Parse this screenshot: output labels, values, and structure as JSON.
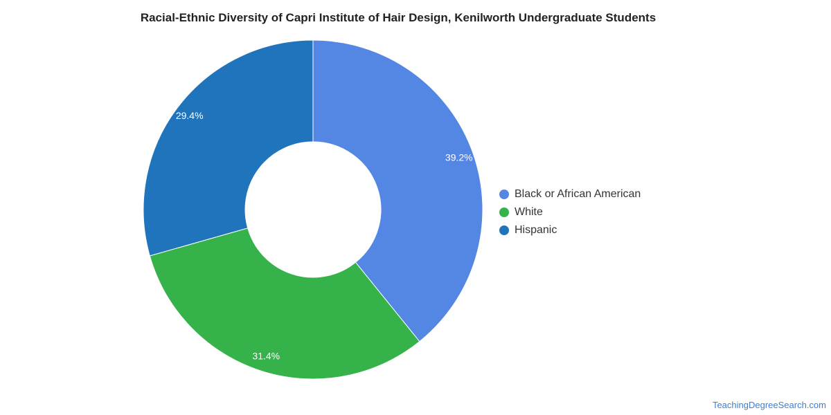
{
  "chart_data": {
    "type": "pie",
    "variant": "donut",
    "title": "Racial-Ethnic Diversity of Capri Institute of Hair Design, Kenilworth Undergraduate Students",
    "slices": [
      {
        "name": "Black or African American",
        "value": 39.2,
        "label": "39.2%",
        "color": "#5486e3"
      },
      {
        "name": "White",
        "value": 31.4,
        "label": "31.4%",
        "color": "#35b24a"
      },
      {
        "name": "Hispanic",
        "value": 29.4,
        "label": "29.4%",
        "color": "#1f74bc"
      }
    ],
    "legend_position": "right"
  },
  "credit": "TeachingDegreeSearch.com"
}
